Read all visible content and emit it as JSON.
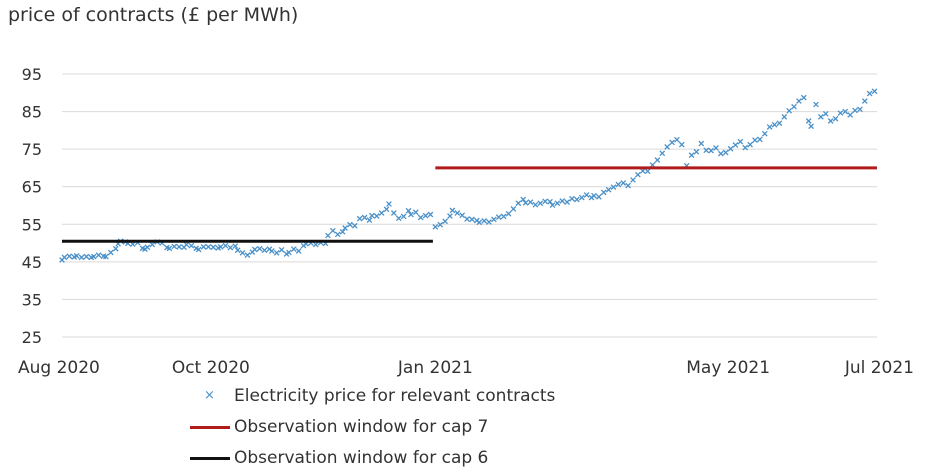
{
  "chart_data": {
    "type": "scatter",
    "ylabel": "price of contracts (£ per MWh)",
    "xlabel": "",
    "ylim": [
      25,
      95
    ],
    "yticks": [
      25,
      35,
      45,
      55,
      65,
      75,
      85,
      95
    ],
    "xlim": [
      "2020-08-01",
      "2021-07-01"
    ],
    "xticks": [
      {
        "date": "2020-08-01",
        "label": "Aug 2020"
      },
      {
        "date": "2020-10-01",
        "label": "Oct 2020"
      },
      {
        "date": "2021-01-01",
        "label": "Jan 2021"
      },
      {
        "date": "2021-05-01",
        "label": "May 2021"
      },
      {
        "date": "2021-07-01",
        "label": "Jul 2021"
      }
    ],
    "grid": "horizontal",
    "legend_position": "bottom",
    "series": [
      {
        "name": "Electricity price for relevant contracts",
        "kind": "scatter",
        "marker": "x",
        "color": "#4a90c8",
        "points": [
          [
            "2020-08-01",
            45.5
          ],
          [
            "2020-08-02",
            46.2
          ],
          [
            "2020-08-04",
            46.5
          ],
          [
            "2020-08-06",
            46.3
          ],
          [
            "2020-08-07",
            46.6
          ],
          [
            "2020-08-09",
            46.2
          ],
          [
            "2020-08-11",
            46.4
          ],
          [
            "2020-08-13",
            46.2
          ],
          [
            "2020-08-14",
            46.4
          ],
          [
            "2020-08-16",
            46.8
          ],
          [
            "2020-08-18",
            46.5
          ],
          [
            "2020-08-19",
            46.4
          ],
          [
            "2020-08-21",
            47.5
          ],
          [
            "2020-08-23",
            48.5
          ],
          [
            "2020-08-24",
            49.8
          ],
          [
            "2020-08-25",
            50.5
          ],
          [
            "2020-08-27",
            50.3
          ],
          [
            "2020-08-28",
            49.9
          ],
          [
            "2020-08-30",
            49.7
          ],
          [
            "2020-09-01",
            50.1
          ],
          [
            "2020-09-03",
            48.6
          ],
          [
            "2020-09-04",
            48.4
          ],
          [
            "2020-09-05",
            48.9
          ],
          [
            "2020-09-07",
            49.6
          ],
          [
            "2020-09-09",
            50.3
          ],
          [
            "2020-09-11",
            50.0
          ],
          [
            "2020-09-13",
            48.8
          ],
          [
            "2020-09-14",
            48.6
          ],
          [
            "2020-09-16",
            49.1
          ],
          [
            "2020-09-18",
            49.0
          ],
          [
            "2020-09-20",
            48.9
          ],
          [
            "2020-09-21",
            49.6
          ],
          [
            "2020-09-23",
            49.3
          ],
          [
            "2020-09-25",
            48.6
          ],
          [
            "2020-09-26",
            48.3
          ],
          [
            "2020-09-28",
            49.0
          ],
          [
            "2020-09-30",
            49.0
          ],
          [
            "2020-10-02",
            48.9
          ],
          [
            "2020-10-04",
            48.7
          ],
          [
            "2020-10-05",
            49.0
          ],
          [
            "2020-10-07",
            49.3
          ],
          [
            "2020-10-09",
            48.8
          ],
          [
            "2020-10-11",
            49.2
          ],
          [
            "2020-10-12",
            48.1
          ],
          [
            "2020-10-14",
            47.4
          ],
          [
            "2020-10-16",
            46.8
          ],
          [
            "2020-10-18",
            47.6
          ],
          [
            "2020-10-19",
            48.3
          ],
          [
            "2020-10-21",
            48.5
          ],
          [
            "2020-10-23",
            48.1
          ],
          [
            "2020-10-25",
            48.4
          ],
          [
            "2020-10-26",
            47.9
          ],
          [
            "2020-10-28",
            47.4
          ],
          [
            "2020-10-30",
            48.2
          ],
          [
            "2020-11-01",
            47.1
          ],
          [
            "2020-11-02",
            47.5
          ],
          [
            "2020-11-04",
            48.4
          ],
          [
            "2020-11-06",
            47.9
          ],
          [
            "2020-11-08",
            49.3
          ],
          [
            "2020-11-09",
            49.8
          ],
          [
            "2020-11-11",
            50.0
          ],
          [
            "2020-11-13",
            49.6
          ],
          [
            "2020-11-15",
            50.1
          ],
          [
            "2020-11-17",
            49.9
          ],
          [
            "2020-11-18",
            52.0
          ],
          [
            "2020-11-20",
            53.3
          ],
          [
            "2020-11-22",
            52.3
          ],
          [
            "2020-11-24",
            53.0
          ],
          [
            "2020-11-25",
            54.0
          ],
          [
            "2020-11-27",
            54.9
          ],
          [
            "2020-11-29",
            54.6
          ],
          [
            "2020-12-01",
            56.5
          ],
          [
            "2020-12-03",
            56.8
          ],
          [
            "2020-12-05",
            56.1
          ],
          [
            "2020-12-06",
            57.3
          ],
          [
            "2020-12-08",
            57.2
          ],
          [
            "2020-12-10",
            58.0
          ],
          [
            "2020-12-12",
            59.0
          ],
          [
            "2020-12-13",
            60.4
          ],
          [
            "2020-12-15",
            58.0
          ],
          [
            "2020-12-17",
            56.6
          ],
          [
            "2020-12-19",
            57.1
          ],
          [
            "2020-12-21",
            58.6
          ],
          [
            "2020-12-22",
            57.6
          ],
          [
            "2020-12-24",
            58.2
          ],
          [
            "2020-12-26",
            56.8
          ],
          [
            "2020-12-28",
            57.3
          ],
          [
            "2020-12-30",
            57.6
          ],
          [
            "2021-01-01",
            54.3
          ],
          [
            "2021-01-03",
            54.9
          ],
          [
            "2021-01-05",
            55.8
          ],
          [
            "2021-01-07",
            57.2
          ],
          [
            "2021-01-08",
            58.7
          ],
          [
            "2021-01-10",
            58.0
          ],
          [
            "2021-01-12",
            57.4
          ],
          [
            "2021-01-14",
            56.4
          ],
          [
            "2021-01-16",
            56.3
          ],
          [
            "2021-01-18",
            56.0
          ],
          [
            "2021-01-19",
            55.5
          ],
          [
            "2021-01-21",
            55.9
          ],
          [
            "2021-01-23",
            55.6
          ],
          [
            "2021-01-25",
            56.3
          ],
          [
            "2021-01-27",
            56.9
          ],
          [
            "2021-01-29",
            57.1
          ],
          [
            "2021-01-31",
            57.8
          ],
          [
            "2021-02-02",
            59.1
          ],
          [
            "2021-02-04",
            60.6
          ],
          [
            "2021-02-06",
            61.6
          ],
          [
            "2021-02-07",
            60.7
          ],
          [
            "2021-02-09",
            60.9
          ],
          [
            "2021-02-11",
            60.2
          ],
          [
            "2021-02-13",
            60.6
          ],
          [
            "2021-02-15",
            61.1
          ],
          [
            "2021-02-17",
            61.0
          ],
          [
            "2021-02-18",
            60.1
          ],
          [
            "2021-02-20",
            60.6
          ],
          [
            "2021-02-22",
            61.2
          ],
          [
            "2021-02-24",
            60.9
          ],
          [
            "2021-02-26",
            61.8
          ],
          [
            "2021-02-28",
            61.6
          ],
          [
            "2021-03-02",
            62.1
          ],
          [
            "2021-03-04",
            62.8
          ],
          [
            "2021-03-06",
            62.1
          ],
          [
            "2021-03-07",
            62.6
          ],
          [
            "2021-03-09",
            62.3
          ],
          [
            "2021-03-11",
            63.5
          ],
          [
            "2021-03-13",
            64.2
          ],
          [
            "2021-03-15",
            64.9
          ],
          [
            "2021-03-17",
            65.6
          ],
          [
            "2021-03-19",
            66.0
          ],
          [
            "2021-03-21",
            65.3
          ],
          [
            "2021-03-23",
            66.8
          ],
          [
            "2021-03-25",
            68.2
          ],
          [
            "2021-03-27",
            69.2
          ],
          [
            "2021-03-29",
            69.1
          ],
          [
            "2021-03-31",
            70.8
          ],
          [
            "2021-04-02",
            72.1
          ],
          [
            "2021-04-04",
            73.9
          ],
          [
            "2021-04-06",
            75.6
          ],
          [
            "2021-04-08",
            76.8
          ],
          [
            "2021-04-10",
            77.5
          ],
          [
            "2021-04-12",
            76.2
          ],
          [
            "2021-04-14",
            70.6
          ],
          [
            "2021-04-16",
            73.4
          ],
          [
            "2021-04-18",
            74.3
          ],
          [
            "2021-04-20",
            76.5
          ],
          [
            "2021-04-22",
            74.7
          ],
          [
            "2021-04-24",
            74.6
          ],
          [
            "2021-04-26",
            75.3
          ],
          [
            "2021-04-28",
            73.8
          ],
          [
            "2021-04-30",
            74.1
          ],
          [
            "2021-05-02",
            75.1
          ],
          [
            "2021-05-04",
            76.1
          ],
          [
            "2021-05-06",
            77.0
          ],
          [
            "2021-05-08",
            75.4
          ],
          [
            "2021-05-10",
            76.2
          ],
          [
            "2021-05-12",
            77.4
          ],
          [
            "2021-05-14",
            77.6
          ],
          [
            "2021-05-16",
            79.1
          ],
          [
            "2021-05-18",
            80.9
          ],
          [
            "2021-05-20",
            81.5
          ],
          [
            "2021-05-22",
            81.9
          ],
          [
            "2021-05-24",
            83.6
          ],
          [
            "2021-05-26",
            85.2
          ],
          [
            "2021-05-28",
            86.3
          ],
          [
            "2021-05-30",
            87.8
          ],
          [
            "2021-06-01",
            88.7
          ],
          [
            "2021-06-03",
            82.5
          ],
          [
            "2021-06-04",
            81.1
          ],
          [
            "2021-06-06",
            86.9
          ],
          [
            "2021-06-08",
            83.6
          ],
          [
            "2021-06-10",
            84.4
          ],
          [
            "2021-06-12",
            82.5
          ],
          [
            "2021-06-14",
            83.1
          ],
          [
            "2021-06-16",
            84.6
          ],
          [
            "2021-06-18",
            85.0
          ],
          [
            "2021-06-20",
            84.1
          ],
          [
            "2021-06-22",
            85.3
          ],
          [
            "2021-06-24",
            85.6
          ],
          [
            "2021-06-26",
            87.8
          ],
          [
            "2021-06-28",
            89.8
          ],
          [
            "2021-06-30",
            90.4
          ]
        ]
      },
      {
        "name": "Observation window for cap 7",
        "kind": "line",
        "color": "#b01c1c",
        "points": [
          [
            "2021-01-01",
            70
          ],
          [
            "2021-07-01",
            70
          ]
        ]
      },
      {
        "name": "Observation window for cap 6",
        "kind": "line",
        "color": "#111111",
        "points": [
          [
            "2020-08-01",
            50.5
          ],
          [
            "2020-12-31",
            50.5
          ]
        ]
      }
    ]
  }
}
